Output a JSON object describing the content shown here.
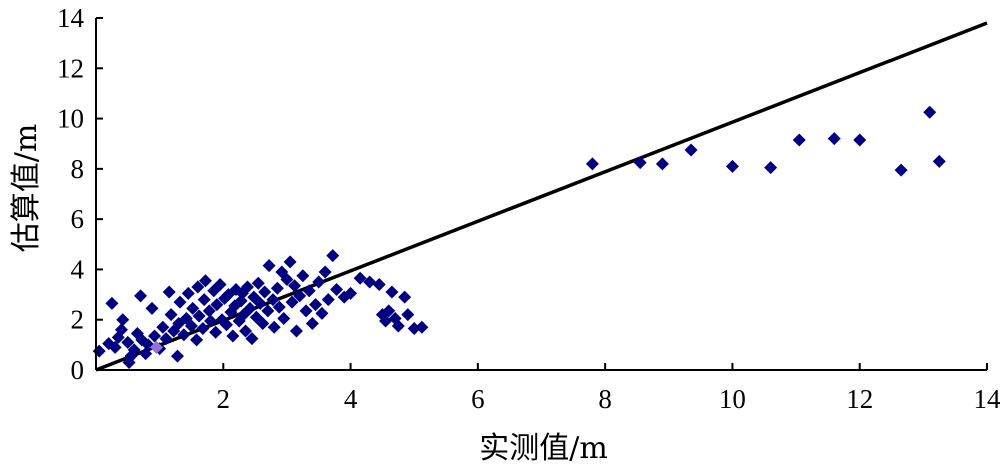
{
  "chart_data": {
    "type": "scatter",
    "title": "",
    "xlabel": "实测值/m",
    "ylabel": "估算值/m",
    "xlim": [
      0,
      14
    ],
    "ylim": [
      0,
      14
    ],
    "xticks": [
      "2",
      "4",
      "6",
      "8",
      "10",
      "12",
      "14"
    ],
    "yticks": [
      "0",
      "2",
      "4",
      "6",
      "8",
      "10",
      "12",
      "14"
    ],
    "grid": false,
    "legend": "none",
    "marker": "diamond",
    "colors": {
      "points": "#000080",
      "highlight_point": "#9a6fd6",
      "line": "#000000",
      "axis": "#000000"
    },
    "reference_line": {
      "x": [
        0,
        14
      ],
      "y": [
        0,
        13.8
      ]
    },
    "highlight_points": [
      {
        "x": 0.95,
        "y": 0.9
      }
    ],
    "points": [
      {
        "x": 0.05,
        "y": 0.75
      },
      {
        "x": 0.2,
        "y": 1.05
      },
      {
        "x": 0.25,
        "y": 2.65
      },
      {
        "x": 0.3,
        "y": 0.9
      },
      {
        "x": 0.35,
        "y": 1.3
      },
      {
        "x": 0.4,
        "y": 1.6
      },
      {
        "x": 0.42,
        "y": 2.0
      },
      {
        "x": 0.5,
        "y": 1.1
      },
      {
        "x": 0.52,
        "y": 0.3
      },
      {
        "x": 0.55,
        "y": 0.55
      },
      {
        "x": 0.6,
        "y": 0.8
      },
      {
        "x": 0.65,
        "y": 1.45
      },
      {
        "x": 0.7,
        "y": 2.95
      },
      {
        "x": 0.72,
        "y": 1.2
      },
      {
        "x": 0.78,
        "y": 0.65
      },
      {
        "x": 0.82,
        "y": 1.0
      },
      {
        "x": 0.88,
        "y": 2.45
      },
      {
        "x": 0.92,
        "y": 1.35
      },
      {
        "x": 1.0,
        "y": 0.85
      },
      {
        "x": 1.05,
        "y": 1.7
      },
      {
        "x": 1.1,
        "y": 1.25
      },
      {
        "x": 1.15,
        "y": 3.1
      },
      {
        "x": 1.18,
        "y": 2.2
      },
      {
        "x": 1.22,
        "y": 1.55
      },
      {
        "x": 1.28,
        "y": 0.55
      },
      {
        "x": 1.3,
        "y": 1.85
      },
      {
        "x": 1.32,
        "y": 2.7
      },
      {
        "x": 1.38,
        "y": 1.4
      },
      {
        "x": 1.42,
        "y": 2.05
      },
      {
        "x": 1.45,
        "y": 3.05
      },
      {
        "x": 1.5,
        "y": 1.75
      },
      {
        "x": 1.52,
        "y": 2.45
      },
      {
        "x": 1.58,
        "y": 1.2
      },
      {
        "x": 1.6,
        "y": 3.3
      },
      {
        "x": 1.62,
        "y": 2.15
      },
      {
        "x": 1.68,
        "y": 1.65
      },
      {
        "x": 1.7,
        "y": 2.8
      },
      {
        "x": 1.72,
        "y": 3.55
      },
      {
        "x": 1.78,
        "y": 2.35
      },
      {
        "x": 1.8,
        "y": 1.95
      },
      {
        "x": 1.85,
        "y": 3.15
      },
      {
        "x": 1.88,
        "y": 1.5
      },
      {
        "x": 1.9,
        "y": 2.6
      },
      {
        "x": 1.95,
        "y": 3.4
      },
      {
        "x": 1.98,
        "y": 2.0
      },
      {
        "x": 2.02,
        "y": 2.85
      },
      {
        "x": 2.05,
        "y": 1.8
      },
      {
        "x": 2.08,
        "y": 3.0
      },
      {
        "x": 2.12,
        "y": 2.3
      },
      {
        "x": 2.15,
        "y": 1.35
      },
      {
        "x": 2.18,
        "y": 2.55
      },
      {
        "x": 2.2,
        "y": 3.2
      },
      {
        "x": 2.25,
        "y": 1.95
      },
      {
        "x": 2.28,
        "y": 2.75
      },
      {
        "x": 2.3,
        "y": 3.05
      },
      {
        "x": 2.32,
        "y": 2.2
      },
      {
        "x": 2.35,
        "y": 1.55
      },
      {
        "x": 2.38,
        "y": 3.3
      },
      {
        "x": 2.42,
        "y": 2.45
      },
      {
        "x": 2.45,
        "y": 1.25
      },
      {
        "x": 2.48,
        "y": 2.9
      },
      {
        "x": 2.52,
        "y": 2.1
      },
      {
        "x": 2.55,
        "y": 3.45
      },
      {
        "x": 2.58,
        "y": 2.65
      },
      {
        "x": 2.62,
        "y": 1.85
      },
      {
        "x": 2.65,
        "y": 3.1
      },
      {
        "x": 2.7,
        "y": 2.35
      },
      {
        "x": 2.72,
        "y": 4.15
      },
      {
        "x": 2.78,
        "y": 2.8
      },
      {
        "x": 2.8,
        "y": 1.7
      },
      {
        "x": 2.85,
        "y": 3.25
      },
      {
        "x": 2.88,
        "y": 2.5
      },
      {
        "x": 2.92,
        "y": 3.9
      },
      {
        "x": 2.95,
        "y": 2.05
      },
      {
        "x": 3.0,
        "y": 3.6
      },
      {
        "x": 3.05,
        "y": 4.3
      },
      {
        "x": 3.08,
        "y": 2.7
      },
      {
        "x": 3.12,
        "y": 3.35
      },
      {
        "x": 3.15,
        "y": 1.55
      },
      {
        "x": 3.2,
        "y": 2.95
      },
      {
        "x": 3.25,
        "y": 3.75
      },
      {
        "x": 3.3,
        "y": 2.35
      },
      {
        "x": 3.35,
        "y": 3.15
      },
      {
        "x": 3.4,
        "y": 1.85
      },
      {
        "x": 3.45,
        "y": 2.6
      },
      {
        "x": 3.5,
        "y": 3.5
      },
      {
        "x": 3.55,
        "y": 2.25
      },
      {
        "x": 3.6,
        "y": 3.9
      },
      {
        "x": 3.65,
        "y": 2.8
      },
      {
        "x": 3.72,
        "y": 4.55
      },
      {
        "x": 3.78,
        "y": 3.2
      },
      {
        "x": 3.9,
        "y": 2.9
      },
      {
        "x": 4.0,
        "y": 3.05
      },
      {
        "x": 4.15,
        "y": 3.65
      },
      {
        "x": 4.3,
        "y": 3.5
      },
      {
        "x": 4.45,
        "y": 3.4
      },
      {
        "x": 4.5,
        "y": 2.2
      },
      {
        "x": 4.55,
        "y": 1.95
      },
      {
        "x": 4.6,
        "y": 2.35
      },
      {
        "x": 4.65,
        "y": 3.1
      },
      {
        "x": 4.7,
        "y": 2.05
      },
      {
        "x": 4.75,
        "y": 1.75
      },
      {
        "x": 4.85,
        "y": 2.9
      },
      {
        "x": 4.9,
        "y": 2.2
      },
      {
        "x": 5.0,
        "y": 1.65
      },
      {
        "x": 5.12,
        "y": 1.7
      },
      {
        "x": 7.8,
        "y": 8.2
      },
      {
        "x": 8.55,
        "y": 8.25
      },
      {
        "x": 8.9,
        "y": 8.2
      },
      {
        "x": 9.35,
        "y": 8.75
      },
      {
        "x": 10.0,
        "y": 8.1
      },
      {
        "x": 10.6,
        "y": 8.05
      },
      {
        "x": 11.05,
        "y": 9.15
      },
      {
        "x": 11.6,
        "y": 9.2
      },
      {
        "x": 12.0,
        "y": 9.15
      },
      {
        "x": 12.65,
        "y": 7.95
      },
      {
        "x": 13.1,
        "y": 10.25
      },
      {
        "x": 13.25,
        "y": 8.3
      }
    ]
  }
}
